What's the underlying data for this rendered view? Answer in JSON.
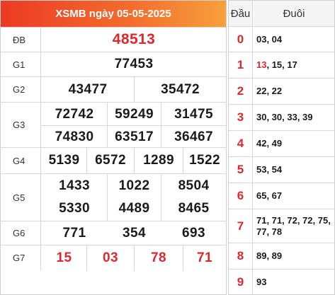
{
  "title": "XSMB ngày 05-05-2025",
  "prizes": {
    "db": {
      "label": "ĐB",
      "numbers": [
        "48513"
      ]
    },
    "g1": {
      "label": "G1",
      "numbers": [
        "77453"
      ]
    },
    "g2": {
      "label": "G2",
      "numbers": [
        "43477",
        "35472"
      ]
    },
    "g3": {
      "label": "G3",
      "numbers": [
        "72742",
        "59249",
        "31475",
        "74830",
        "63517",
        "36467"
      ]
    },
    "g4": {
      "label": "G4",
      "numbers": [
        "5139",
        "6572",
        "1289",
        "1522"
      ]
    },
    "g5": {
      "label": "G5",
      "numbers": [
        "1433",
        "1022",
        "8504",
        "5330",
        "4489",
        "8465"
      ]
    },
    "g6": {
      "label": "G6",
      "numbers": [
        "771",
        "354",
        "693"
      ]
    },
    "g7": {
      "label": "G7",
      "numbers": [
        "15",
        "03",
        "78",
        "71"
      ]
    }
  },
  "headtail": {
    "head_label": "Đầu",
    "tail_label": "Đuôi",
    "rows": [
      {
        "dau": "0",
        "duoi_hl": "",
        "duoi": "03, 04"
      },
      {
        "dau": "1",
        "duoi_hl": "13",
        "duoi": ", 15, 17"
      },
      {
        "dau": "2",
        "duoi_hl": "",
        "duoi": "22, 22"
      },
      {
        "dau": "3",
        "duoi_hl": "",
        "duoi": "30, 30, 33, 39"
      },
      {
        "dau": "4",
        "duoi_hl": "",
        "duoi": "42, 49"
      },
      {
        "dau": "5",
        "duoi_hl": "",
        "duoi": "53, 54"
      },
      {
        "dau": "6",
        "duoi_hl": "",
        "duoi": "65, 67"
      },
      {
        "dau": "7",
        "duoi_hl": "",
        "duoi": "71, 71, 72, 72, 75, 77, 78"
      },
      {
        "dau": "8",
        "duoi_hl": "",
        "duoi": "89, 89"
      },
      {
        "dau": "9",
        "duoi_hl": "",
        "duoi": "93"
      }
    ]
  },
  "colors": {
    "accent": "#e0262f",
    "header_start": "#ec3a24",
    "header_end": "#f7a03c",
    "grid": "#d6d6d6"
  }
}
